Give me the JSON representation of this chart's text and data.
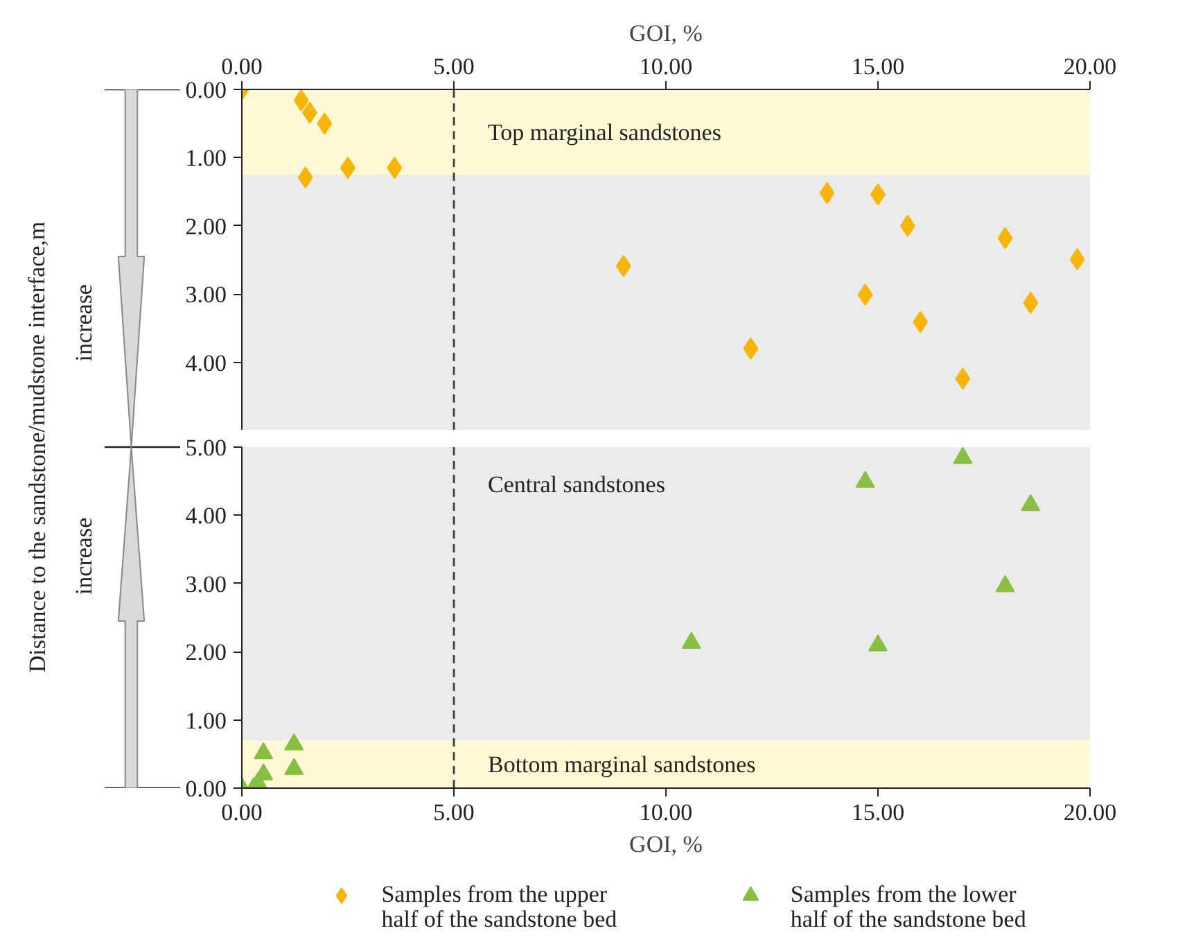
{
  "chart_data": [
    {
      "type": "scatter",
      "ylabel": "Distance to the sandstone/mudstone interface,m",
      "xlabel": "GOI, %",
      "annotations": [
        "increase"
      ],
      "xlim": [
        0,
        20
      ],
      "xticks": [
        {
          "value": 0,
          "label": "0.00"
        },
        {
          "value": 5,
          "label": "5.00"
        },
        {
          "value": 10,
          "label": "10.00"
        },
        {
          "value": 15,
          "label": "15.00"
        },
        {
          "value": 20,
          "label": "20.00"
        }
      ],
      "ylim": [
        5,
        0
      ],
      "yticks": [
        {
          "value": 0,
          "label": "0.00"
        },
        {
          "value": 1,
          "label": "1.00"
        },
        {
          "value": 2,
          "label": "2.00"
        },
        {
          "value": 3,
          "label": "3.00"
        },
        {
          "value": 4,
          "label": "4.00"
        },
        {
          "value": 5,
          "label": null
        }
      ],
      "series": [
        {
          "name": "Samples from the upper half of the sandstone bed",
          "color": "#f7b50c",
          "x": [
            0,
            1.4,
            1.6,
            1.95,
            1.5,
            2.5,
            3.6,
            13.8,
            15.0,
            15.7,
            18.0,
            19.7,
            9.0,
            14.7,
            18.6,
            16.0,
            12.0,
            17.0
          ],
          "values": [
            0,
            0.16,
            0.34,
            0.5,
            1.29,
            1.15,
            1.15,
            1.52,
            1.54,
            2.0,
            2.18,
            2.49,
            2.59,
            3.01,
            3.13,
            3.41,
            3.8,
            4.24
          ]
        }
      ],
      "bands": [
        {
          "axis": "y",
          "from": 0,
          "to": 1.25,
          "label": "Top marginal sandstones",
          "color": "#fff9d6"
        },
        {
          "axis": "y",
          "from": 1.25,
          "to": 5,
          "color": "#ebebeb"
        }
      ],
      "ref_lines": [
        {
          "axis": "x",
          "value": 5,
          "color": "#333333",
          "line_style": "dashed"
        }
      ],
      "marker": "diamond",
      "legend": "bottom"
    },
    {
      "type": "scatter",
      "xlabel": "GOI, %",
      "annotations": [
        "increase"
      ],
      "xlim": [
        0,
        20
      ],
      "xticks": [
        {
          "value": 0,
          "label": "0.00"
        },
        {
          "value": 5,
          "label": "5.00"
        },
        {
          "value": 10,
          "label": "10.00"
        },
        {
          "value": 15,
          "label": "15.00"
        },
        {
          "value": 20,
          "label": "20.00"
        }
      ],
      "ylim": [
        0,
        5
      ],
      "yticks": [
        {
          "value": 0,
          "label": "0.00"
        },
        {
          "value": 1,
          "label": "1.00"
        },
        {
          "value": 2,
          "label": "2.00"
        },
        {
          "value": 3,
          "label": "3.00"
        },
        {
          "value": 4,
          "label": "4.00"
        },
        {
          "value": 5,
          "label": "5.00"
        }
      ],
      "series": [
        {
          "name": "Samples from the lower half of the sandstone bed",
          "color": "#86bf41",
          "x": [
            17.0,
            14.7,
            18.6,
            18.0,
            10.6,
            15.0,
            1.23,
            1.23,
            0.51,
            0.51,
            0.38,
            0,
            0.28
          ],
          "values": [
            4.84,
            4.49,
            4.15,
            2.96,
            2.13,
            2.09,
            0.64,
            0.28,
            0.51,
            0.2,
            0.07,
            0,
            0
          ]
        }
      ],
      "bands": [
        {
          "axis": "y",
          "from": 0.7,
          "to": 5,
          "label": "Central sandstones",
          "color": "#ebebeb"
        },
        {
          "axis": "y",
          "from": 0,
          "to": 0.7,
          "label": "Bottom marginal sandstones",
          "color": "#fff9d6"
        }
      ],
      "ref_lines": [
        {
          "axis": "x",
          "value": 5,
          "color": "#333333",
          "line_style": "dashed"
        }
      ],
      "marker": "triangle",
      "legend": "bottom"
    }
  ]
}
